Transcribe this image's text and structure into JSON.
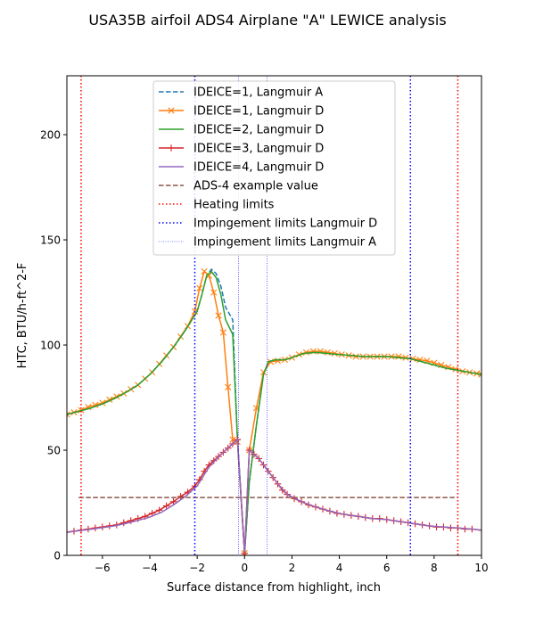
{
  "chart_data": {
    "type": "line",
    "title": "USA35B airfoil ADS4 Airplane \"A\" LEWICE analysis",
    "xlabel": "Surface distance from highlight, inch",
    "ylabel": "HTC, BTU/h-ft^2-F",
    "xlim": [
      -7.5,
      10
    ],
    "ylim": [
      0,
      228
    ],
    "xticks": [
      -6,
      -4,
      -2,
      0,
      2,
      4,
      6,
      8,
      10
    ],
    "yticks": [
      0,
      50,
      100,
      150,
      200
    ],
    "grid": false,
    "legend_position": "top-center",
    "series": [
      {
        "name": "IDEICE=1, Langmuir A",
        "color": "#1f77b4",
        "style": "dashed",
        "marker": "none",
        "x": [
          -7.5,
          -7.0,
          -6.5,
          -6.0,
          -5.5,
          -5.0,
          -4.5,
          -4.0,
          -3.5,
          -3.0,
          -2.5,
          -2.0,
          -1.8,
          -1.6,
          -1.4,
          -1.2,
          -1.0,
          -0.8,
          -0.5,
          -0.3,
          0.0,
          0.2,
          0.5,
          0.8,
          1.0,
          1.3,
          1.7,
          2.0,
          2.5,
          3.0,
          3.5,
          4.0,
          4.5,
          5.0,
          5.5,
          6.0,
          6.5,
          7.0,
          7.5,
          8.0,
          8.5,
          9.0,
          9.5,
          10.0
        ],
        "y": [
          67,
          68.5,
          70,
          72,
          74.5,
          77.5,
          81,
          86,
          92,
          99,
          107,
          116,
          124,
          133,
          136,
          134,
          128,
          118,
          112,
          55,
          1,
          35,
          62,
          86,
          92,
          93,
          93,
          94,
          96,
          96.5,
          96,
          95.5,
          95,
          94.5,
          94.5,
          94.5,
          94,
          93.5,
          92,
          90.5,
          89,
          88,
          87,
          86
        ]
      },
      {
        "name": "IDEICE=1, Langmuir D",
        "color": "#ff7f0e",
        "style": "solid",
        "marker": "x",
        "x": [
          -7.5,
          -7.2,
          -6.9,
          -6.6,
          -6.3,
          -6.0,
          -5.7,
          -5.4,
          -5.1,
          -4.8,
          -4.5,
          -4.2,
          -3.9,
          -3.6,
          -3.3,
          -3.0,
          -2.7,
          -2.4,
          -2.1,
          -1.9,
          -1.7,
          -1.5,
          -1.3,
          -1.1,
          -0.9,
          -0.7,
          -0.5,
          -0.3,
          0.0,
          0.2,
          0.5,
          0.8,
          1.1,
          1.4,
          1.7,
          2.0,
          2.3,
          2.6,
          2.9,
          3.2,
          3.5,
          3.8,
          4.1,
          4.4,
          4.7,
          5.0,
          5.3,
          5.6,
          5.9,
          6.2,
          6.5,
          6.8,
          7.1,
          7.4,
          7.7,
          8.0,
          8.3,
          8.6,
          8.9,
          9.2,
          9.5,
          9.8,
          10.0
        ],
        "y": [
          67,
          68,
          69,
          70.5,
          71.5,
          72.5,
          74,
          75.5,
          77,
          79,
          81,
          84,
          87,
          91,
          95,
          99,
          104,
          109,
          116,
          127,
          135,
          133,
          125,
          114,
          106,
          80,
          55,
          54,
          1,
          50,
          70,
          87,
          92,
          92.5,
          93,
          94,
          95.5,
          96.5,
          97,
          97,
          96.5,
          96,
          95.5,
          95,
          94.5,
          94.5,
          94.5,
          94.5,
          94.5,
          94.5,
          94.5,
          94,
          93.5,
          93,
          92.5,
          91.5,
          90.5,
          89.5,
          88.5,
          87.5,
          87,
          86.5,
          86
        ]
      },
      {
        "name": "IDEICE=2, Langmuir D",
        "color": "#2ca02c",
        "style": "solid",
        "marker": "none",
        "x": [
          -7.5,
          -7.0,
          -6.5,
          -6.0,
          -5.5,
          -5.0,
          -4.5,
          -4.0,
          -3.5,
          -3.0,
          -2.5,
          -2.0,
          -1.8,
          -1.6,
          -1.4,
          -1.2,
          -1.0,
          -0.8,
          -0.5,
          -0.3,
          0.0,
          0.2,
          0.5,
          0.8,
          1.0,
          1.3,
          1.7,
          2.0,
          2.5,
          3.0,
          3.5,
          4.0,
          4.5,
          5.0,
          5.5,
          6.0,
          6.5,
          7.0,
          7.5,
          8.0,
          8.5,
          9.0,
          9.5,
          10.0
        ],
        "y": [
          67,
          68.5,
          70,
          72,
          74.5,
          77.5,
          81,
          86,
          92,
          99,
          107,
          116,
          124,
          133,
          135,
          132,
          124,
          112,
          105,
          55,
          1,
          35,
          62,
          86,
          92,
          93,
          93,
          94,
          96,
          96.5,
          96,
          95.5,
          95,
          94.5,
          94.5,
          94.5,
          94,
          93.5,
          92,
          90.5,
          89,
          88,
          87,
          86
        ]
      },
      {
        "name": "IDEICE=3, Langmuir D",
        "color": "#d62728",
        "style": "solid",
        "marker": "+",
        "x": [
          -7.5,
          -7.2,
          -6.9,
          -6.6,
          -6.3,
          -6.0,
          -5.7,
          -5.4,
          -5.1,
          -4.8,
          -4.5,
          -4.2,
          -3.9,
          -3.6,
          -3.3,
          -3.0,
          -2.7,
          -2.4,
          -2.1,
          -1.9,
          -1.7,
          -1.5,
          -1.3,
          -1.1,
          -0.9,
          -0.7,
          -0.5,
          -0.3,
          0.0,
          0.2,
          0.4,
          0.6,
          0.8,
          1.0,
          1.2,
          1.4,
          1.6,
          1.8,
          2.1,
          2.4,
          2.7,
          3.0,
          3.3,
          3.6,
          3.9,
          4.2,
          4.5,
          4.8,
          5.1,
          5.4,
          5.7,
          6.0,
          6.3,
          6.6,
          6.9,
          7.2,
          7.5,
          7.8,
          8.1,
          8.4,
          8.7,
          9.0,
          9.3,
          9.6,
          10.0
        ],
        "y": [
          11,
          11.5,
          12,
          12.5,
          13,
          13.5,
          14,
          14.5,
          15.5,
          16.5,
          17.5,
          18.5,
          20,
          21.5,
          23.5,
          25.5,
          28,
          30,
          33,
          36,
          40,
          43,
          45,
          47,
          49,
          51,
          53,
          55,
          1,
          50,
          48,
          46,
          43,
          40,
          37,
          34,
          31,
          29,
          27,
          25.5,
          24,
          23,
          22,
          21,
          20,
          19.5,
          19,
          18.5,
          18,
          17.5,
          17.5,
          17,
          16.5,
          16,
          15.5,
          15,
          14.5,
          14,
          13.5,
          13.5,
          13,
          13,
          12.5,
          12.5,
          12
        ]
      },
      {
        "name": "IDEICE=4, Langmuir D",
        "color": "#9467bd",
        "style": "solid",
        "marker": "none",
        "x": [
          -7.5,
          -7.0,
          -6.5,
          -6.0,
          -5.5,
          -5.0,
          -4.5,
          -4.0,
          -3.5,
          -3.0,
          -2.5,
          -2.0,
          -1.5,
          -1.0,
          -0.5,
          -0.3,
          0.0,
          0.2,
          0.6,
          1.0,
          1.4,
          1.8,
          2.4,
          3.0,
          3.6,
          4.2,
          4.8,
          5.4,
          6.0,
          6.6,
          7.2,
          7.8,
          8.4,
          9.0,
          9.6,
          10.0
        ],
        "y": [
          11,
          11.7,
          12.4,
          13.2,
          14,
          15.2,
          16.6,
          18.2,
          20.5,
          24,
          28,
          33,
          42,
          48,
          53,
          55,
          1,
          50,
          46,
          40,
          34,
          29,
          25.5,
          23,
          21,
          19.5,
          18.5,
          17.5,
          17,
          16,
          15,
          14,
          13.5,
          13,
          12.5,
          12
        ]
      },
      {
        "name": "ADS-4 example value",
        "color": "#8c564b",
        "style": "dashed",
        "marker": "none",
        "x": [
          -7,
          9
        ],
        "y": [
          27.5,
          27.5
        ]
      }
    ],
    "vlines": [
      {
        "name": "Heating limits",
        "color": "#ff0000",
        "style": "dotted",
        "width": 1.5,
        "x": [
          -6.9,
          9.0
        ]
      },
      {
        "name": "Impingement limits Langmuir D",
        "color": "#0000ff",
        "style": "dotted",
        "width": 1.5,
        "x": [
          -2.1,
          7.0
        ]
      },
      {
        "name": "Impingement limits Langmuir A",
        "color": "#0000ff",
        "style": "dotted",
        "width": 0.6,
        "x": [
          -0.25,
          0.95
        ]
      }
    ]
  }
}
